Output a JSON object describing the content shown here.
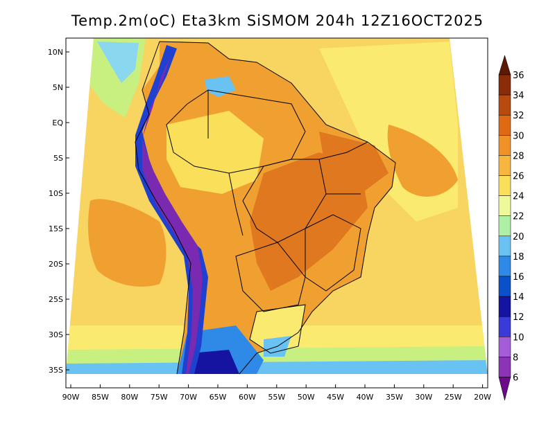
{
  "title": "Temp.2m(oC) Eta3km SiSMOM 204h 12Z16OCT2025",
  "lat_ticks": [
    "10N",
    "5N",
    "EQ",
    "5S",
    "10S",
    "15S",
    "20S",
    "25S",
    "30S",
    "35S"
  ],
  "lon_ticks": [
    "90W",
    "85W",
    "80W",
    "75W",
    "70W",
    "65W",
    "60W",
    "55W",
    "50W",
    "45W",
    "40W",
    "35W",
    "30W",
    "25W",
    "20W"
  ],
  "colorbar": {
    "labels": [
      "6",
      "8",
      "10",
      "12",
      "14",
      "16",
      "18",
      "20",
      "22",
      "24",
      "26",
      "28",
      "30",
      "32",
      "34",
      "36"
    ],
    "colors": [
      "#6a0a8a",
      "#8c34b4",
      "#a45cd8",
      "#3a3ad8",
      "#1414a0",
      "#0a50c8",
      "#2e8ae6",
      "#6ac2f2",
      "#aef0a6",
      "#eefa9a",
      "#fae05a",
      "#f6b640",
      "#f09228",
      "#e06a14",
      "#b84a10",
      "#8a2c08",
      "#5a1a06"
    ]
  },
  "palette": {
    "ocean_warm": "#f8d460",
    "ocean_yellow": "#faea70",
    "ocean_cool": "#c8f080",
    "land_orange": "#f0a030",
    "land_dark_orange": "#e07820",
    "andes": "#7a2ab0",
    "andes_blue": "#2040d0",
    "south_cold": "#4a90e0"
  }
}
